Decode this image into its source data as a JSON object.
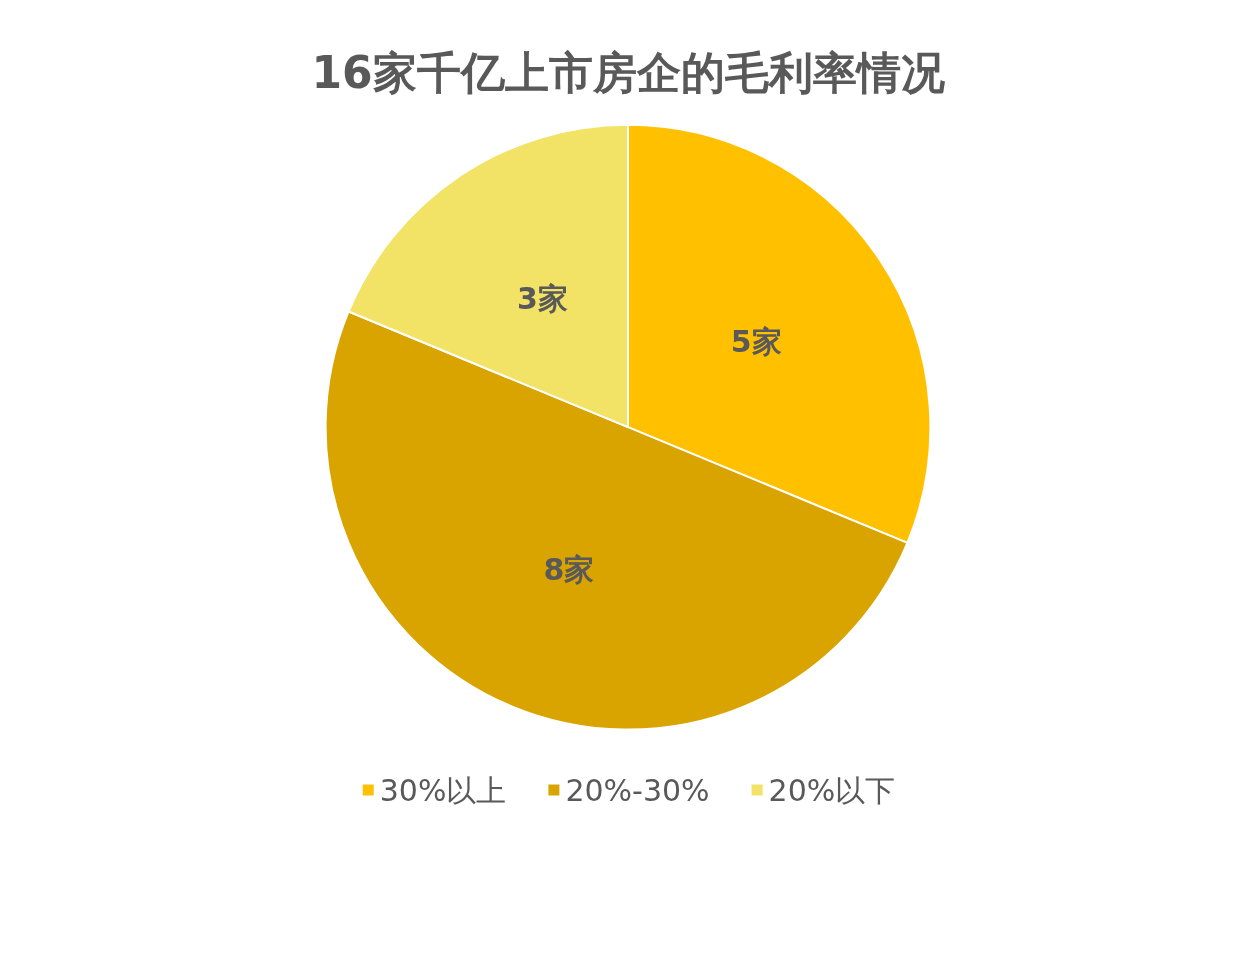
{
  "chart_data": {
    "type": "pie",
    "title": "16家千亿上市房企的毛利率情况",
    "categories": [
      "30%以上",
      "20%-30%",
      "20%以下"
    ],
    "values": [
      5,
      8,
      3
    ],
    "value_labels": [
      "5家",
      "8家",
      "3家"
    ],
    "colors": [
      "#ffc000",
      "#d9a300",
      "#f2e266"
    ],
    "legend": "bottom"
  }
}
